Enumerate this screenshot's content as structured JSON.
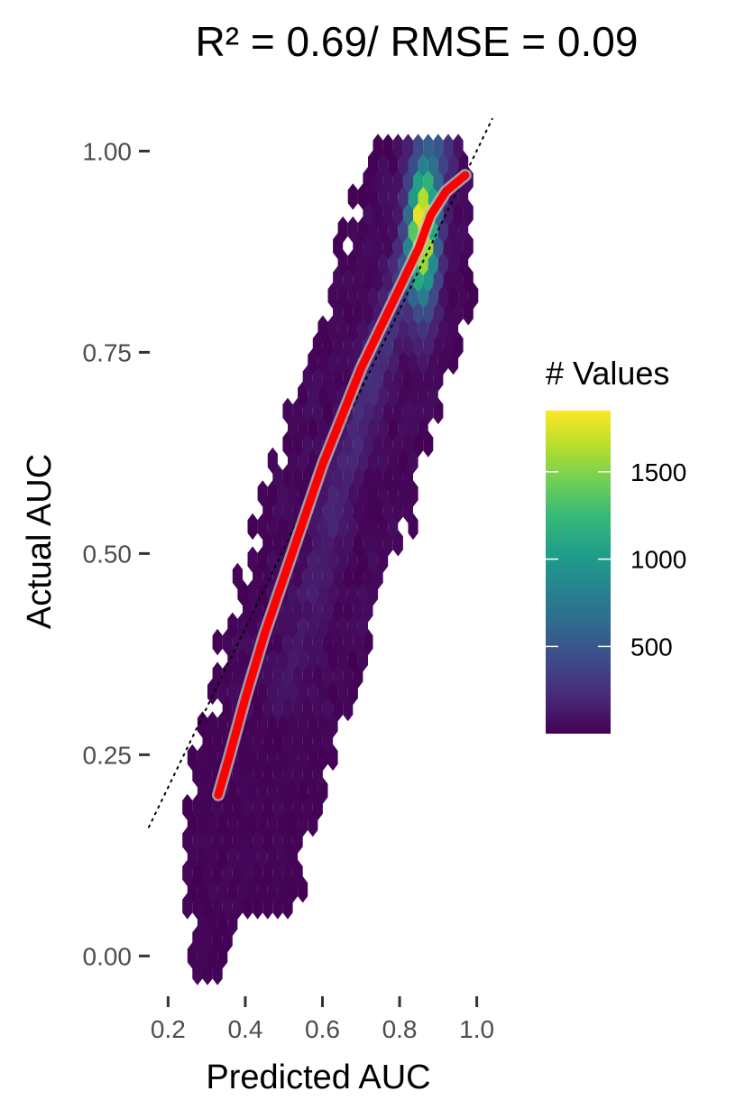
{
  "chart_data": {
    "type": "heatmap",
    "subtype": "hexbin",
    "title": "R² = 0.69/ RMSE = 0.09",
    "xlabel": "Predicted AUC",
    "ylabel": "Actual AUC",
    "xlim": [
      0.15,
      1.05
    ],
    "ylim": [
      -0.04,
      1.07
    ],
    "x_ticks": [
      0.2,
      0.4,
      0.6,
      0.8,
      1.0
    ],
    "x_tick_labels": [
      "0.2",
      "0.4",
      "0.6",
      "0.8",
      "1.0"
    ],
    "y_ticks": [
      0.0,
      0.25,
      0.5,
      0.75,
      1.0
    ],
    "y_tick_labels": [
      "0.00",
      "0.25",
      "0.50",
      "0.75",
      "1.00"
    ],
    "grid": false,
    "legend": {
      "title": "# Values",
      "position": "right",
      "range": [
        1,
        1850
      ],
      "ticks": [
        500,
        1000,
        1500
      ],
      "tick_labels": [
        "500",
        "1000",
        "1500"
      ],
      "colormap": "viridis",
      "colors": [
        "#440154",
        "#482878",
        "#3e4989",
        "#31688e",
        "#26828e",
        "#1f9e89",
        "#35b779",
        "#6ece58",
        "#b5de2b",
        "#fde725"
      ]
    },
    "reference_line": {
      "style": "dotted",
      "color": "#000000",
      "x": [
        0.15,
        1.04
      ],
      "y": [
        0.16,
        1.04
      ]
    },
    "fit_line": {
      "color": "#ff0000",
      "x": [
        0.33,
        0.36,
        0.4,
        0.45,
        0.5,
        0.55,
        0.6,
        0.65,
        0.7,
        0.75,
        0.8,
        0.85,
        0.88,
        0.92,
        0.97
      ],
      "y": [
        0.2,
        0.25,
        0.32,
        0.4,
        0.47,
        0.54,
        0.61,
        0.67,
        0.73,
        0.78,
        0.83,
        0.88,
        0.92,
        0.95,
        0.97
      ]
    },
    "density": {
      "ridge": {
        "x": [
          0.4,
          0.5,
          0.6,
          0.7,
          0.8,
          0.9
        ],
        "y": [
          0.15,
          0.32,
          0.5,
          0.67,
          0.83,
          0.98
        ]
      },
      "peak": {
        "x": 0.86,
        "y": 0.9,
        "value": 1850
      }
    }
  }
}
